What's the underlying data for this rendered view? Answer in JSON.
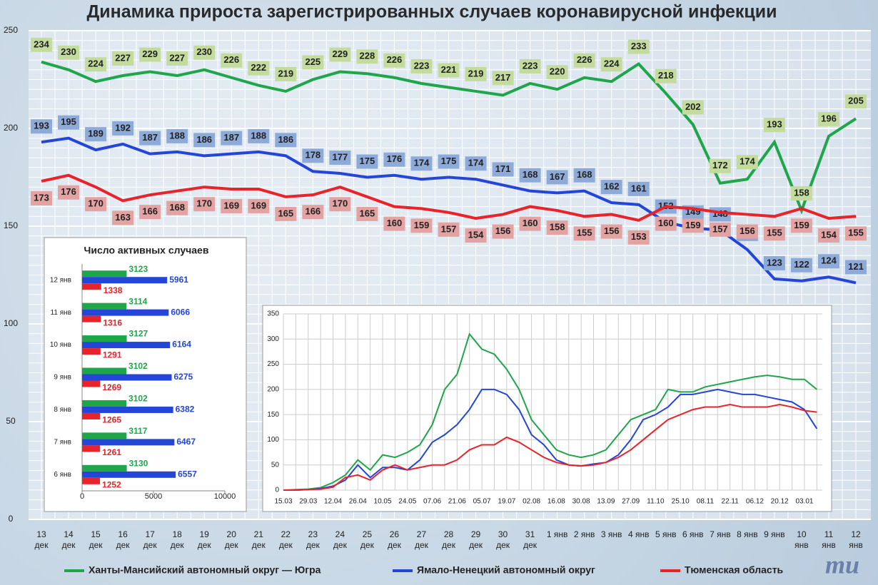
{
  "chart_data": [
    {
      "type": "line",
      "title": "Динамика прироста зарегистрированных случаев коронавирусной инфекции",
      "categories": [
        "13\nдек",
        "14\nдек",
        "15\nдек",
        "16\nдек",
        "17\nдек",
        "18\nдек",
        "19\nдек",
        "20\nдек",
        "21\nдек",
        "22\nдек",
        "23\nдек",
        "24\nдек",
        "25\nдек",
        "26\nдек",
        "27\nдек",
        "28\nдек",
        "29\nдек",
        "30\nдек",
        "31\nдек",
        "1 янв",
        "2 янв",
        "3 янв",
        "4 янв",
        "5 янв",
        "6 янв",
        "7 янв",
        "8 янв",
        "9 янв",
        "10\nянв",
        "11\nянв",
        "12\nянв"
      ],
      "series": [
        {
          "name": "Ханты-Мансийский автономный округ — Югра",
          "color": "#1fa64a",
          "label_color": "#c3dc9e",
          "values": [
            234,
            230,
            224,
            227,
            229,
            227,
            230,
            226,
            222,
            219,
            225,
            229,
            228,
            226,
            223,
            221,
            219,
            217,
            223,
            220,
            226,
            224,
            233,
            218,
            202,
            172,
            174,
            193,
            158,
            196,
            205
          ]
        },
        {
          "name": "Ямало-Ненецкий автономный округ",
          "color": "#2346d8",
          "label_color": "#8eaad8",
          "values": [
            193,
            195,
            189,
            192,
            187,
            188,
            186,
            187,
            188,
            186,
            178,
            177,
            175,
            176,
            174,
            175,
            174,
            171,
            168,
            167,
            168,
            162,
            161,
            152,
            149,
            148,
            138,
            123,
            122,
            124,
            121
          ]
        },
        {
          "name": "Тюменская область",
          "color": "#e8232a",
          "label_color": "#e3a3a3",
          "values": [
            173,
            176,
            170,
            163,
            166,
            168,
            170,
            169,
            169,
            165,
            166,
            170,
            165,
            160,
            159,
            157,
            154,
            156,
            160,
            158,
            155,
            156,
            153,
            160,
            159,
            157,
            156,
            155,
            159,
            154,
            155
          ]
        }
      ],
      "ylim": [
        0,
        250
      ],
      "yticks": [
        0,
        50,
        100,
        150,
        200,
        250
      ],
      "grid": true,
      "legend": "bottom",
      "logo": "mu"
    },
    {
      "type": "hbar",
      "title": "Число активных случаев",
      "categories": [
        "12 янв",
        "11 янв",
        "10 янв",
        "9 янв",
        "8 янв",
        "7 янв",
        "6 янв"
      ],
      "series": [
        {
          "color": "#1fa64a",
          "values": [
            3123,
            3114,
            3127,
            3102,
            3102,
            3117,
            3130
          ]
        },
        {
          "color": "#2346d8",
          "values": [
            5961,
            6066,
            6164,
            6275,
            6382,
            6467,
            6557
          ]
        },
        {
          "color": "#e8232a",
          "values": [
            1338,
            1316,
            1291,
            1269,
            1265,
            1261,
            1252
          ]
        }
      ],
      "xlim": [
        0,
        10000
      ],
      "xticks": [
        0,
        5000,
        10000
      ]
    },
    {
      "type": "line",
      "categories": [
        "15.03",
        null,
        "29.03",
        null,
        "12.04",
        null,
        "26.04",
        null,
        "10.05",
        null,
        "24.05",
        null,
        "07.06",
        null,
        "21.06",
        null,
        "05.07",
        null,
        "19.07",
        null,
        "02.08",
        null,
        "16.08",
        null,
        "30.08",
        null,
        "13.09",
        null,
        "27.09",
        null,
        "11.10",
        null,
        "25.10",
        null,
        "08.11",
        null,
        "22.11",
        null,
        "06.12",
        null,
        "20.12",
        null,
        "03.01",
        null
      ],
      "series": [
        {
          "color": "#1fa64a",
          "values": [
            0,
            1,
            2,
            5,
            15,
            30,
            60,
            40,
            70,
            65,
            75,
            90,
            130,
            200,
            230,
            310,
            280,
            270,
            240,
            200,
            140,
            110,
            80,
            70,
            65,
            70,
            80,
            110,
            140,
            150,
            160,
            200,
            195,
            195,
            205,
            210,
            215,
            220,
            225,
            228,
            225,
            220,
            220,
            200
          ]
        },
        {
          "color": "#2346d8",
          "values": [
            0,
            0,
            1,
            3,
            8,
            20,
            50,
            25,
            45,
            45,
            40,
            60,
            95,
            110,
            130,
            160,
            200,
            200,
            190,
            160,
            110,
            90,
            60,
            50,
            48,
            52,
            55,
            70,
            100,
            140,
            150,
            165,
            190,
            190,
            195,
            200,
            195,
            190,
            190,
            185,
            180,
            175,
            160,
            122
          ]
        },
        {
          "color": "#e8232a",
          "values": [
            0,
            0,
            1,
            2,
            6,
            25,
            30,
            20,
            40,
            50,
            40,
            45,
            50,
            50,
            60,
            80,
            90,
            90,
            105,
            95,
            80,
            65,
            55,
            50,
            48,
            50,
            55,
            65,
            80,
            100,
            120,
            140,
            150,
            160,
            165,
            165,
            170,
            165,
            165,
            165,
            170,
            165,
            158,
            155
          ]
        }
      ],
      "ylim": [
        0,
        350
      ],
      "yticks": [
        0,
        50,
        100,
        150,
        200,
        250,
        300,
        350
      ],
      "grid": true
    }
  ]
}
